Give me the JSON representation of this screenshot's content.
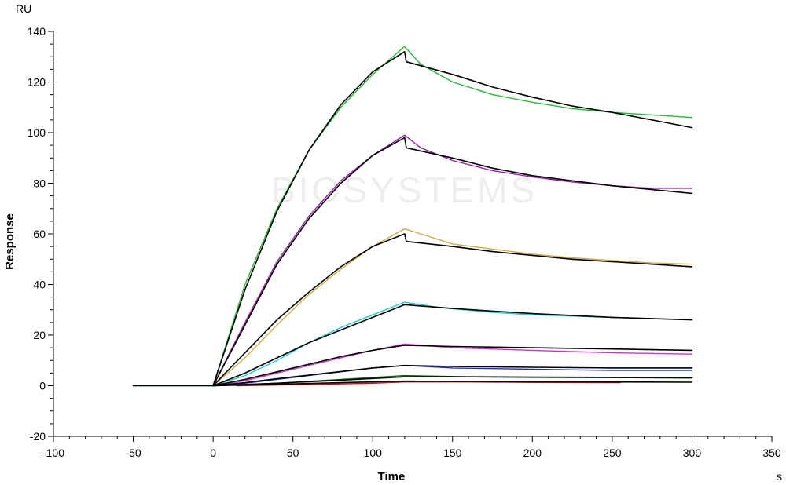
{
  "chart_data": {
    "type": "line",
    "title": "",
    "xlabel": "Time",
    "ylabel": "Response",
    "x_unit": "s",
    "y_unit": "RU",
    "xlim": [
      -100,
      350
    ],
    "ylim": [
      -20,
      140
    ],
    "x_ticks": [
      -100,
      -50,
      0,
      50,
      100,
      150,
      200,
      250,
      300,
      350
    ],
    "y_ticks": [
      -20,
      0,
      20,
      40,
      60,
      80,
      100,
      120,
      140
    ],
    "x_tick_labels": [
      "-100",
      "-50",
      "0",
      "50",
      "100",
      "150",
      "200",
      "250",
      "300",
      "350"
    ],
    "y_tick_labels": [
      "-20",
      "0",
      "20",
      "40",
      "60",
      "80",
      "100",
      "120",
      "140"
    ],
    "grid": false,
    "legend": "none",
    "watermark": "BIOSYSTEMS",
    "series": [
      {
        "color": "#22bb33",
        "role": "measured",
        "points": [
          [
            -50,
            0
          ],
          [
            0,
            0
          ],
          [
            20,
            40
          ],
          [
            40,
            70
          ],
          [
            60,
            93
          ],
          [
            80,
            110
          ],
          [
            100,
            123
          ],
          [
            118,
            133
          ],
          [
            120,
            134
          ],
          [
            130,
            127
          ],
          [
            150,
            120
          ],
          [
            175,
            115
          ],
          [
            200,
            112
          ],
          [
            225,
            109.5
          ],
          [
            250,
            108
          ],
          [
            275,
            107
          ],
          [
            300,
            106
          ]
        ]
      },
      {
        "color": "#000000",
        "role": "fit",
        "points": [
          [
            -50,
            0
          ],
          [
            0,
            0
          ],
          [
            20,
            38
          ],
          [
            40,
            69
          ],
          [
            60,
            93
          ],
          [
            80,
            111
          ],
          [
            100,
            124
          ],
          [
            120,
            132
          ],
          [
            121,
            128
          ],
          [
            150,
            123
          ],
          [
            175,
            118
          ],
          [
            200,
            114
          ],
          [
            225,
            110.5
          ],
          [
            250,
            108
          ],
          [
            275,
            105
          ],
          [
            300,
            102
          ]
        ]
      },
      {
        "color": "#9922aa",
        "role": "measured",
        "points": [
          [
            0,
            0
          ],
          [
            20,
            25
          ],
          [
            40,
            49
          ],
          [
            60,
            67
          ],
          [
            80,
            81
          ],
          [
            100,
            91
          ],
          [
            120,
            99
          ],
          [
            130,
            94
          ],
          [
            150,
            89
          ],
          [
            175,
            85
          ],
          [
            200,
            82.5
          ],
          [
            225,
            80.5
          ],
          [
            250,
            79
          ],
          [
            275,
            78
          ],
          [
            300,
            78
          ]
        ]
      },
      {
        "color": "#000000",
        "role": "fit",
        "points": [
          [
            0,
            0
          ],
          [
            20,
            24
          ],
          [
            40,
            48
          ],
          [
            60,
            66
          ],
          [
            80,
            80
          ],
          [
            100,
            91
          ],
          [
            120,
            98
          ],
          [
            121,
            94
          ],
          [
            150,
            90
          ],
          [
            175,
            86
          ],
          [
            200,
            83
          ],
          [
            225,
            81
          ],
          [
            250,
            79
          ],
          [
            275,
            77.5
          ],
          [
            300,
            76
          ]
        ]
      },
      {
        "color": "#ccaa44",
        "role": "measured",
        "points": [
          [
            0,
            0
          ],
          [
            20,
            11
          ],
          [
            40,
            24
          ],
          [
            60,
            36
          ],
          [
            80,
            46
          ],
          [
            100,
            55
          ],
          [
            120,
            62
          ],
          [
            130,
            60
          ],
          [
            150,
            56
          ],
          [
            175,
            54
          ],
          [
            200,
            52
          ],
          [
            225,
            50.5
          ],
          [
            250,
            49.5
          ],
          [
            275,
            48.5
          ],
          [
            300,
            48
          ]
        ]
      },
      {
        "color": "#000000",
        "role": "fit",
        "points": [
          [
            0,
            0
          ],
          [
            20,
            13
          ],
          [
            40,
            26
          ],
          [
            60,
            37
          ],
          [
            80,
            47
          ],
          [
            100,
            55
          ],
          [
            120,
            60
          ],
          [
            121,
            57
          ],
          [
            150,
            55
          ],
          [
            175,
            53
          ],
          [
            200,
            51.5
          ],
          [
            225,
            50
          ],
          [
            250,
            49
          ],
          [
            275,
            48
          ],
          [
            300,
            47
          ]
        ]
      },
      {
        "color": "#22cccc",
        "role": "measured",
        "points": [
          [
            0,
            0
          ],
          [
            20,
            4
          ],
          [
            40,
            10
          ],
          [
            60,
            17
          ],
          [
            80,
            23
          ],
          [
            100,
            28
          ],
          [
            120,
            33
          ],
          [
            140,
            31
          ],
          [
            175,
            29
          ],
          [
            200,
            28
          ],
          [
            250,
            27
          ],
          [
            300,
            26
          ]
        ]
      },
      {
        "color": "#000000",
        "role": "fit",
        "points": [
          [
            0,
            0
          ],
          [
            20,
            5
          ],
          [
            40,
            11
          ],
          [
            60,
            17
          ],
          [
            80,
            22
          ],
          [
            100,
            27
          ],
          [
            120,
            32
          ],
          [
            150,
            30.5
          ],
          [
            175,
            29.5
          ],
          [
            200,
            28.5
          ],
          [
            250,
            27
          ],
          [
            300,
            26
          ]
        ]
      },
      {
        "color": "#cc33cc",
        "role": "measured",
        "points": [
          [
            0,
            0
          ],
          [
            20,
            2
          ],
          [
            40,
            5
          ],
          [
            60,
            8
          ],
          [
            80,
            11
          ],
          [
            100,
            14
          ],
          [
            120,
            16.5
          ],
          [
            150,
            15
          ],
          [
            200,
            14
          ],
          [
            250,
            13
          ],
          [
            300,
            12.5
          ]
        ]
      },
      {
        "color": "#000000",
        "role": "fit",
        "points": [
          [
            0,
            0
          ],
          [
            20,
            2.5
          ],
          [
            40,
            5.5
          ],
          [
            60,
            8.5
          ],
          [
            80,
            11.5
          ],
          [
            100,
            14
          ],
          [
            120,
            16
          ],
          [
            150,
            15.5
          ],
          [
            200,
            15
          ],
          [
            250,
            14.5
          ],
          [
            300,
            14
          ]
        ]
      },
      {
        "color": "#2233cc",
        "role": "measured",
        "points": [
          [
            0,
            0
          ],
          [
            20,
            1
          ],
          [
            40,
            2.5
          ],
          [
            60,
            4
          ],
          [
            80,
            5.5
          ],
          [
            100,
            7
          ],
          [
            120,
            8
          ],
          [
            150,
            7
          ],
          [
            200,
            6.5
          ],
          [
            250,
            6
          ],
          [
            300,
            6
          ]
        ]
      },
      {
        "color": "#000000",
        "role": "fit",
        "points": [
          [
            0,
            0
          ],
          [
            20,
            1.2
          ],
          [
            40,
            2.8
          ],
          [
            60,
            4.2
          ],
          [
            80,
            5.6
          ],
          [
            100,
            7
          ],
          [
            120,
            8
          ],
          [
            150,
            7.6
          ],
          [
            200,
            7.3
          ],
          [
            250,
            7
          ],
          [
            300,
            7
          ]
        ]
      },
      {
        "color": "#116611",
        "role": "measured",
        "points": [
          [
            0,
            0
          ],
          [
            40,
            1
          ],
          [
            80,
            2.5
          ],
          [
            120,
            4
          ],
          [
            160,
            3.5
          ],
          [
            200,
            3.3
          ],
          [
            250,
            3.2
          ],
          [
            300,
            3
          ]
        ]
      },
      {
        "color": "#000000",
        "role": "fit",
        "points": [
          [
            0,
            0
          ],
          [
            40,
            1
          ],
          [
            80,
            2.2
          ],
          [
            120,
            3.5
          ],
          [
            160,
            3.5
          ],
          [
            200,
            3.4
          ],
          [
            250,
            3.3
          ],
          [
            300,
            3.2
          ]
        ]
      },
      {
        "color": "#cc1111",
        "role": "measured",
        "points": [
          [
            15,
            0
          ],
          [
            60,
            0.5
          ],
          [
            100,
            1
          ],
          [
            120,
            1.5
          ],
          [
            160,
            1.5
          ],
          [
            200,
            1.3
          ],
          [
            255,
            1.2
          ]
        ]
      },
      {
        "color": "#000000",
        "role": "fit",
        "points": [
          [
            0,
            0
          ],
          [
            40,
            0.6
          ],
          [
            80,
            1.2
          ],
          [
            120,
            1.8
          ],
          [
            160,
            1.7
          ],
          [
            200,
            1.6
          ],
          [
            250,
            1.5
          ],
          [
            300,
            1.4
          ]
        ]
      }
    ]
  }
}
